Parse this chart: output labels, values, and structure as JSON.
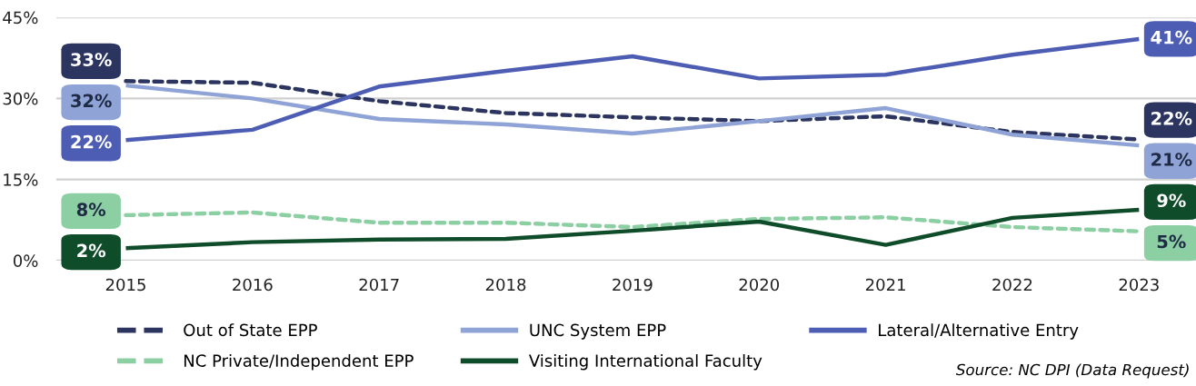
{
  "chart_data": {
    "type": "line",
    "x": [
      2015,
      2016,
      2017,
      2018,
      2019,
      2020,
      2021,
      2022,
      2023
    ],
    "xlim": [
      2014.45,
      2023.45
    ],
    "xticks": [
      2015,
      2016,
      2017,
      2018,
      2019,
      2020,
      2021,
      2022,
      2023
    ],
    "ylim": [
      0,
      45
    ],
    "yticks": [
      {
        "value": 0,
        "label": "0%"
      },
      {
        "value": 15,
        "label": "15%"
      },
      {
        "value": 30,
        "label": "30%"
      },
      {
        "value": 45,
        "label": "45%"
      }
    ],
    "grid": "y",
    "legend": "bottom",
    "marker": "none",
    "series": [
      {
        "name": "Out of State EPP",
        "color": "#2b3560",
        "line_style": "dashed",
        "values": [
          33.2,
          32.9,
          29.5,
          27.3,
          26.5,
          25.8,
          26.7,
          23.8,
          22.4
        ],
        "value_labels": [
          "33%",
          null,
          null,
          null,
          null,
          null,
          null,
          null,
          "22%"
        ]
      },
      {
        "name": "UNC System EPP",
        "color": "#8fa3d6",
        "line_style": "solid",
        "values": [
          32.4,
          30.0,
          26.2,
          25.2,
          23.5,
          25.8,
          28.2,
          23.3,
          21.3
        ],
        "value_labels": [
          "32%",
          null,
          null,
          null,
          null,
          null,
          null,
          null,
          "21%"
        ]
      },
      {
        "name": "Lateral/Alternative Entry",
        "color": "#4d5db3",
        "line_style": "solid",
        "values": [
          22.3,
          24.2,
          32.2,
          35.1,
          37.8,
          33.7,
          34.4,
          38.1,
          41.0
        ],
        "value_labels": [
          "22%",
          null,
          null,
          null,
          null,
          null,
          null,
          null,
          "41%"
        ]
      },
      {
        "name": "NC Private/Independent EPP",
        "color": "#8ccfa3",
        "line_style": "dashed",
        "values": [
          8.4,
          8.9,
          7.0,
          7.0,
          6.2,
          7.7,
          8.0,
          6.2,
          5.4
        ],
        "value_labels": [
          "8%",
          null,
          null,
          null,
          null,
          null,
          null,
          null,
          "5%"
        ]
      },
      {
        "name": "Visiting International Faculty",
        "color": "#0f4d2a",
        "line_style": "solid",
        "values": [
          2.3,
          3.4,
          3.9,
          4.0,
          5.5,
          7.2,
          2.9,
          7.9,
          9.4
        ],
        "value_labels": [
          "2%",
          null,
          null,
          null,
          null,
          null,
          null,
          null,
          "9%"
        ]
      }
    ],
    "annotations": [
      "Source: NC DPI (Data Request)"
    ]
  }
}
